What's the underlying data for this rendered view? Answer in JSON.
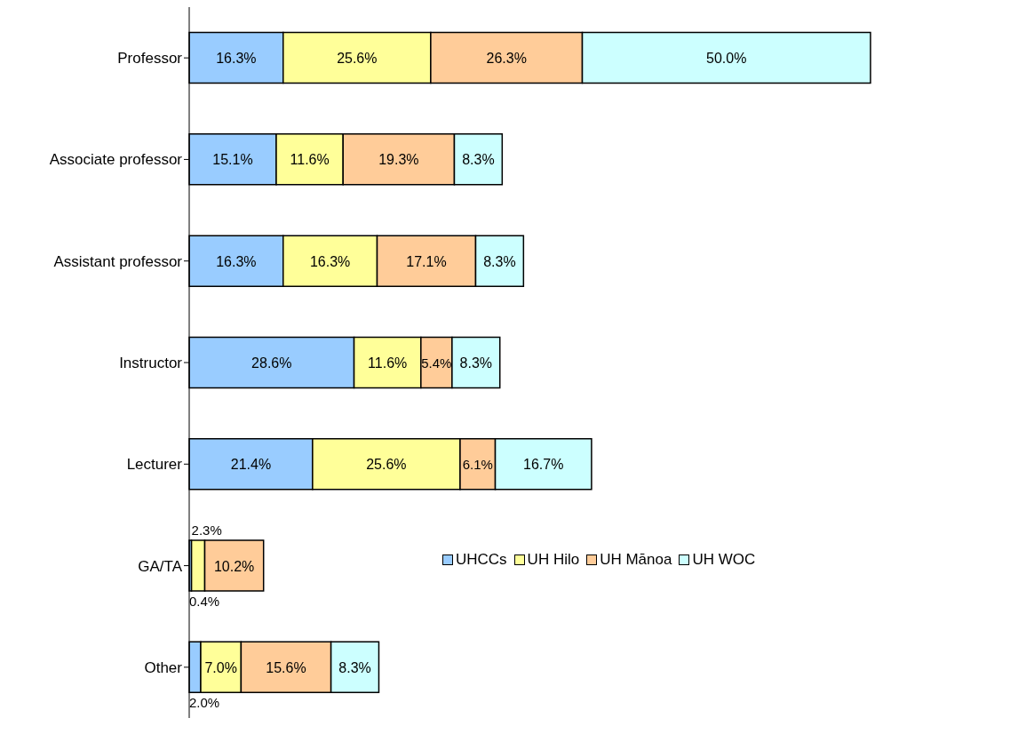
{
  "chart_data": {
    "type": "bar",
    "orientation": "horizontal",
    "stacked": true,
    "legend": "right",
    "categories": [
      "Professor",
      "Associate professor",
      "Assistant professor",
      "Instructor",
      "Lecturer",
      "GA/TA",
      "Other"
    ],
    "series": [
      {
        "name": "UHCCs",
        "color": "#99ccff",
        "values": [
          16.3,
          15.1,
          16.3,
          28.6,
          21.4,
          0.4,
          2.0
        ],
        "value_labels": [
          "16.3%",
          "15.1%",
          "16.3%",
          "28.6%",
          "21.4%",
          "0.4%",
          "2.0%"
        ]
      },
      {
        "name": "UH Hilo",
        "color": "#ffff99",
        "values": [
          25.6,
          11.6,
          16.3,
          11.6,
          25.6,
          2.3,
          7.0
        ],
        "value_labels": [
          "25.6%",
          "11.6%",
          "16.3%",
          "11.6%",
          "25.6%",
          "2.3%",
          "7.0%"
        ]
      },
      {
        "name": "UH Mānoa",
        "color": "#ffcc99",
        "values": [
          26.3,
          19.3,
          17.1,
          5.4,
          6.1,
          10.2,
          15.6
        ],
        "value_labels": [
          "26.3%",
          "19.3%",
          "17.1%",
          "5.4%",
          "6.1%",
          "10.2%",
          "15.6%"
        ]
      },
      {
        "name": "UH WOC",
        "color": "#ccffff",
        "values": [
          50.0,
          8.3,
          8.3,
          8.3,
          16.7,
          null,
          8.3
        ],
        "value_labels": [
          "50.0%",
          "8.3%",
          "8.3%",
          "8.3%",
          "16.7%",
          null,
          "8.3%"
        ]
      }
    ]
  }
}
